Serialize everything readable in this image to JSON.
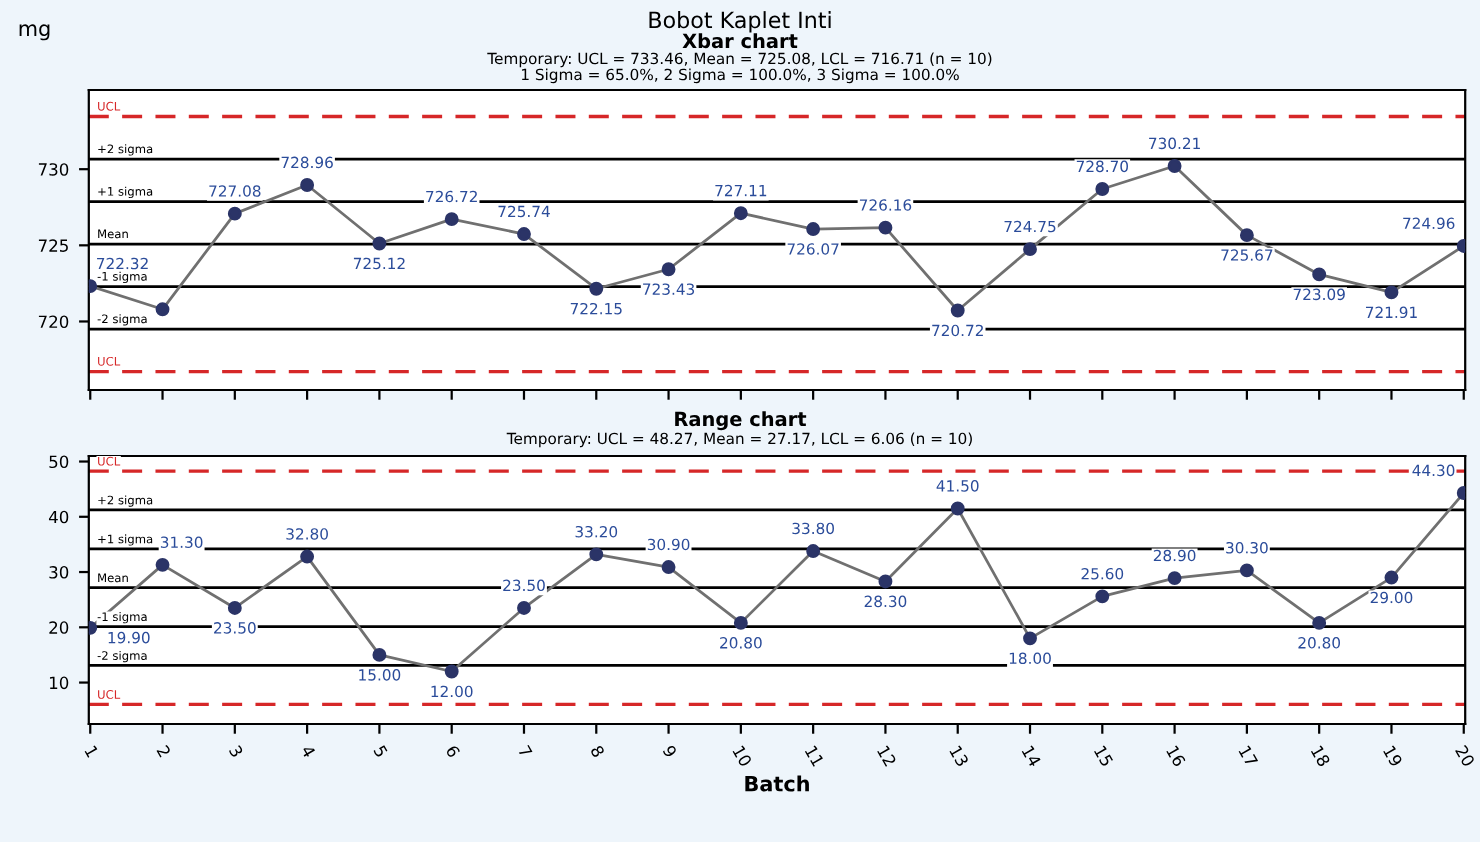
{
  "chart_data": [
    {
      "type": "line",
      "title": "Bobot Kaplet Inti",
      "subtitle": "Xbar chart",
      "ylabel": "mg",
      "annotations": [
        "Temporary: UCL = 733.46, Mean = 725.08, LCL = 716.71 (n = 10)",
        "1 Sigma = 65.0%, 2 Sigma = 100.0%, 3 Sigma = 100.0%"
      ],
      "categories": [
        "1",
        "2",
        "3",
        "4",
        "5",
        "6",
        "7",
        "8",
        "9",
        "10",
        "11",
        "12",
        "13",
        "14",
        "15",
        "16",
        "17",
        "18",
        "19",
        "20"
      ],
      "series": [
        {
          "color": "#2b3467",
          "values": [
            722.32,
            720.8,
            727.08,
            728.96,
            725.12,
            726.72,
            725.74,
            722.15,
            723.43,
            727.11,
            726.07,
            726.16,
            720.72,
            724.75,
            728.7,
            730.21,
            725.67,
            723.09,
            721.91,
            724.96
          ],
          "value_labels": [
            "722.32",
            null,
            "727.08",
            "728.96",
            "725.12",
            "726.72",
            "725.74",
            "722.15",
            "723.43",
            "727.11",
            "726.07",
            "726.16",
            "720.72",
            "724.75",
            "728.70",
            "730.21",
            "725.67",
            "723.09",
            "721.91",
            "724.96"
          ]
        }
      ],
      "ylim": [
        715.5,
        735.2
      ],
      "yticks": [
        720,
        725,
        730
      ],
      "tick_labels": "y",
      "marker": "circle",
      "line_style": "solid",
      "grid": false,
      "ref_lines": [
        {
          "axis": "y",
          "value": 733.46,
          "label": "UCL",
          "color": "#d62728",
          "line_style": "dashed"
        },
        {
          "axis": "y",
          "value": 730.66,
          "label": "+2 sigma",
          "color": "#000000",
          "line_style": "solid"
        },
        {
          "axis": "y",
          "value": 727.87,
          "label": "+1 sigma",
          "color": "#000000",
          "line_style": "solid"
        },
        {
          "axis": "y",
          "value": 725.08,
          "label": "Mean",
          "color": "#000000",
          "line_style": "solid"
        },
        {
          "axis": "y",
          "value": 722.29,
          "label": "-1 sigma",
          "color": "#000000",
          "line_style": "solid"
        },
        {
          "axis": "y",
          "value": 719.5,
          "label": "-2 sigma",
          "color": "#000000",
          "line_style": "solid"
        },
        {
          "axis": "y",
          "value": 716.71,
          "label": "UCL",
          "color": "#d62728",
          "line_style": "dashed"
        }
      ]
    },
    {
      "type": "line",
      "title": "Range chart",
      "subtitle": "Temporary: UCL = 48.27, Mean = 27.17, LCL = 6.06 (n = 10)",
      "xlabel": "Batch",
      "categories": [
        "1",
        "2",
        "3",
        "4",
        "5",
        "6",
        "7",
        "8",
        "9",
        "10",
        "11",
        "12",
        "13",
        "14",
        "15",
        "16",
        "17",
        "18",
        "19",
        "20"
      ],
      "series": [
        {
          "color": "#2b3467",
          "values": [
            19.9,
            31.3,
            23.5,
            32.8,
            15.0,
            12.0,
            23.5,
            33.2,
            30.9,
            20.8,
            33.8,
            28.3,
            41.5,
            18.0,
            25.6,
            28.9,
            30.3,
            20.8,
            29.0,
            44.3
          ],
          "value_labels": [
            "19.90",
            "31.30",
            "23.50",
            "32.80",
            "15.00",
            "12.00",
            "23.50",
            "33.20",
            "30.90",
            "20.80",
            "33.80",
            "28.30",
            "41.50",
            "18.00",
            "25.60",
            "28.90",
            "30.30",
            "20.80",
            "29.00",
            "44.30"
          ]
        }
      ],
      "ylim": [
        2.5,
        51
      ],
      "yticks": [
        10,
        20,
        30,
        40,
        50
      ],
      "marker": "circle",
      "line_style": "solid",
      "grid": false,
      "ref_lines": [
        {
          "axis": "y",
          "value": 48.27,
          "label": "UCL",
          "color": "#d62728",
          "line_style": "dashed"
        },
        {
          "axis": "y",
          "value": 41.24,
          "label": "+2 sigma",
          "color": "#000000",
          "line_style": "solid"
        },
        {
          "axis": "y",
          "value": 34.2,
          "label": "+1 sigma",
          "color": "#000000",
          "line_style": "solid"
        },
        {
          "axis": "y",
          "value": 27.17,
          "label": "Mean",
          "color": "#000000",
          "line_style": "solid"
        },
        {
          "axis": "y",
          "value": 20.14,
          "label": "-1 sigma",
          "color": "#000000",
          "line_style": "solid"
        },
        {
          "axis": "y",
          "value": 13.1,
          "label": "-2 sigma",
          "color": "#000000",
          "line_style": "solid"
        },
        {
          "axis": "y",
          "value": 6.06,
          "label": "UCL",
          "color": "#d62728",
          "line_style": "dashed"
        }
      ]
    }
  ]
}
